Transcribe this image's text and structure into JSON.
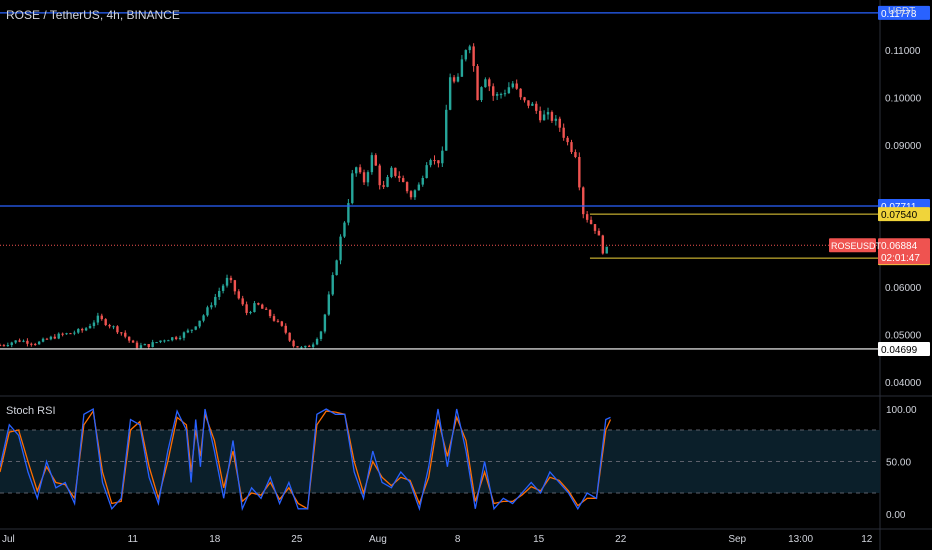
{
  "header": {
    "title": "ROSE / TetherUS, 4h, BINANCE",
    "currency": "USDT"
  },
  "indicator": {
    "title": "Stoch RSI"
  },
  "colors": {
    "up": "#26a69a",
    "down": "#ef5350",
    "blue_line": "#2962ff",
    "yellow": "#f0d43a",
    "rsi_k": "#2962ff",
    "rsi_d": "#ff6d00",
    "band_fill": "#0b1f2a"
  },
  "price_axis": {
    "ticks": [
      "0.11000",
      "0.10000",
      "0.09000",
      "0.06000",
      "0.05000",
      "0.04000"
    ],
    "tick_values": [
      0.11,
      0.1,
      0.09,
      0.06,
      0.05,
      0.04
    ]
  },
  "labels": {
    "top_line": "0.11778",
    "resistance": "0.07711",
    "yellow_high": "0.07540",
    "symbol": "ROSEUSDT",
    "last_price": "0.06884",
    "countdown": "02:01:47",
    "yellow_low": "0.06613",
    "support": "0.04699"
  },
  "rsi_axis": {
    "ticks": [
      "100.00",
      "50.00",
      "0.00"
    ],
    "tick_values": [
      100,
      50,
      0
    ]
  },
  "time_axis": {
    "ticks": [
      "Jul",
      "11",
      "18",
      "25",
      "Aug",
      "8",
      "15",
      "22",
      "Sep",
      "13:00",
      "12"
    ],
    "tick_positions": [
      0.0,
      0.1425,
      0.2305,
      0.3185,
      0.4055,
      0.491,
      0.578,
      0.666,
      0.791,
      0.859,
      0.93
    ]
  },
  "chart_data": {
    "type": "candlestick",
    "symbol": "ROSEUSDT",
    "interval": "4h",
    "exchange": "BINANCE",
    "ylim": [
      0.0375,
      0.1205
    ],
    "horizontal_levels": [
      {
        "value": 0.11778,
        "color": "#2962ff"
      },
      {
        "value": 0.07711,
        "color": "#2962ff"
      },
      {
        "value": 0.0754,
        "color": "#f0d43a"
      },
      {
        "value": 0.06613,
        "color": "#f0d43a"
      },
      {
        "value": 0.04699,
        "color": "#ffffff"
      }
    ],
    "last_price": 0.06884,
    "close_path": [
      [
        0,
        0.0478
      ],
      [
        0.02,
        0.0488
      ],
      [
        0.04,
        0.0482
      ],
      [
        0.06,
        0.0497
      ],
      [
        0.075,
        0.0503
      ],
      [
        0.09,
        0.051
      ],
      [
        0.105,
        0.0535
      ],
      [
        0.118,
        0.052
      ],
      [
        0.13,
        0.0505
      ],
      [
        0.145,
        0.0475
      ],
      [
        0.16,
        0.0478
      ],
      [
        0.175,
        0.049
      ],
      [
        0.19,
        0.0495
      ],
      [
        0.205,
        0.051
      ],
      [
        0.22,
        0.0545
      ],
      [
        0.235,
        0.0592
      ],
      [
        0.245,
        0.062
      ],
      [
        0.255,
        0.058
      ],
      [
        0.265,
        0.0545
      ],
      [
        0.275,
        0.0565
      ],
      [
        0.29,
        0.054
      ],
      [
        0.305,
        0.051
      ],
      [
        0.315,
        0.0478
      ],
      [
        0.325,
        0.047
      ],
      [
        0.335,
        0.048
      ],
      [
        0.345,
        0.051
      ],
      [
        0.355,
        0.06
      ],
      [
        0.365,
        0.07
      ],
      [
        0.372,
        0.076
      ],
      [
        0.38,
        0.086
      ],
      [
        0.39,
        0.082
      ],
      [
        0.4,
        0.088
      ],
      [
        0.41,
        0.08
      ],
      [
        0.42,
        0.0845
      ],
      [
        0.43,
        0.083
      ],
      [
        0.44,
        0.079
      ],
      [
        0.45,
        0.0815
      ],
      [
        0.46,
        0.088
      ],
      [
        0.468,
        0.086
      ],
      [
        0.475,
        0.088
      ],
      [
        0.482,
        0.105
      ],
      [
        0.49,
        0.102
      ],
      [
        0.498,
        0.11
      ],
      [
        0.505,
        0.112
      ],
      [
        0.512,
        0.1
      ],
      [
        0.52,
        0.105
      ],
      [
        0.53,
        0.1
      ],
      [
        0.54,
        0.101
      ],
      [
        0.55,
        0.103
      ],
      [
        0.56,
        0.099
      ],
      [
        0.57,
        0.0985
      ],
      [
        0.58,
        0.096
      ],
      [
        0.59,
        0.096
      ],
      [
        0.6,
        0.094
      ],
      [
        0.61,
        0.09
      ],
      [
        0.618,
        0.088
      ],
      [
        0.625,
        0.076
      ],
      [
        0.632,
        0.074
      ],
      [
        0.64,
        0.072
      ],
      [
        0.648,
        0.067
      ],
      [
        0.655,
        0.069
      ]
    ],
    "stoch_rsi": {
      "ylim": [
        0,
        100
      ],
      "bands": [
        80,
        50,
        20
      ],
      "k": [
        [
          0,
          45
        ],
        [
          0.01,
          85
        ],
        [
          0.02,
          75
        ],
        [
          0.03,
          40
        ],
        [
          0.04,
          15
        ],
        [
          0.05,
          50
        ],
        [
          0.06,
          25
        ],
        [
          0.07,
          30
        ],
        [
          0.08,
          10
        ],
        [
          0.09,
          95
        ],
        [
          0.1,
          100
        ],
        [
          0.11,
          30
        ],
        [
          0.12,
          5
        ],
        [
          0.13,
          15
        ],
        [
          0.14,
          90
        ],
        [
          0.15,
          85
        ],
        [
          0.16,
          35
        ],
        [
          0.17,
          10
        ],
        [
          0.18,
          60
        ],
        [
          0.19,
          98
        ],
        [
          0.2,
          80
        ],
        [
          0.205,
          30
        ],
        [
          0.21,
          90
        ],
        [
          0.215,
          45
        ],
        [
          0.22,
          100
        ],
        [
          0.23,
          60
        ],
        [
          0.24,
          15
        ],
        [
          0.25,
          70
        ],
        [
          0.26,
          5
        ],
        [
          0.27,
          25
        ],
        [
          0.28,
          15
        ],
        [
          0.29,
          35
        ],
        [
          0.3,
          10
        ],
        [
          0.31,
          30
        ],
        [
          0.32,
          5
        ],
        [
          0.33,
          5
        ],
        [
          0.34,
          95
        ],
        [
          0.35,
          100
        ],
        [
          0.36,
          95
        ],
        [
          0.37,
          95
        ],
        [
          0.38,
          40
        ],
        [
          0.39,
          15
        ],
        [
          0.4,
          60
        ],
        [
          0.41,
          30
        ],
        [
          0.42,
          25
        ],
        [
          0.43,
          40
        ],
        [
          0.44,
          30
        ],
        [
          0.45,
          5
        ],
        [
          0.46,
          45
        ],
        [
          0.47,
          100
        ],
        [
          0.48,
          45
        ],
        [
          0.49,
          100
        ],
        [
          0.5,
          60
        ],
        [
          0.51,
          5
        ],
        [
          0.52,
          50
        ],
        [
          0.53,
          5
        ],
        [
          0.54,
          15
        ],
        [
          0.55,
          10
        ],
        [
          0.56,
          20
        ],
        [
          0.57,
          30
        ],
        [
          0.58,
          20
        ],
        [
          0.59,
          40
        ],
        [
          0.6,
          30
        ],
        [
          0.61,
          20
        ],
        [
          0.62,
          5
        ],
        [
          0.63,
          20
        ],
        [
          0.64,
          15
        ],
        [
          0.65,
          90
        ],
        [
          0.655,
          92
        ]
      ],
      "d": [
        [
          0,
          40
        ],
        [
          0.01,
          78
        ],
        [
          0.02,
          80
        ],
        [
          0.03,
          50
        ],
        [
          0.04,
          22
        ],
        [
          0.05,
          45
        ],
        [
          0.06,
          30
        ],
        [
          0.07,
          28
        ],
        [
          0.08,
          15
        ],
        [
          0.09,
          85
        ],
        [
          0.1,
          98
        ],
        [
          0.11,
          40
        ],
        [
          0.12,
          10
        ],
        [
          0.13,
          12
        ],
        [
          0.14,
          80
        ],
        [
          0.15,
          88
        ],
        [
          0.16,
          45
        ],
        [
          0.17,
          15
        ],
        [
          0.18,
          50
        ],
        [
          0.19,
          92
        ],
        [
          0.2,
          85
        ],
        [
          0.205,
          40
        ],
        [
          0.21,
          80
        ],
        [
          0.215,
          55
        ],
        [
          0.22,
          95
        ],
        [
          0.23,
          70
        ],
        [
          0.24,
          25
        ],
        [
          0.25,
          60
        ],
        [
          0.26,
          12
        ],
        [
          0.27,
          20
        ],
        [
          0.28,
          18
        ],
        [
          0.29,
          30
        ],
        [
          0.3,
          14
        ],
        [
          0.31,
          25
        ],
        [
          0.32,
          10
        ],
        [
          0.33,
          5
        ],
        [
          0.34,
          85
        ],
        [
          0.35,
          98
        ],
        [
          0.36,
          97
        ],
        [
          0.37,
          95
        ],
        [
          0.38,
          50
        ],
        [
          0.39,
          20
        ],
        [
          0.4,
          50
        ],
        [
          0.41,
          35
        ],
        [
          0.42,
          27
        ],
        [
          0.43,
          35
        ],
        [
          0.44,
          32
        ],
        [
          0.45,
          10
        ],
        [
          0.46,
          35
        ],
        [
          0.47,
          90
        ],
        [
          0.48,
          55
        ],
        [
          0.49,
          92
        ],
        [
          0.5,
          70
        ],
        [
          0.51,
          12
        ],
        [
          0.52,
          40
        ],
        [
          0.53,
          10
        ],
        [
          0.54,
          12
        ],
        [
          0.55,
          12
        ],
        [
          0.56,
          18
        ],
        [
          0.57,
          26
        ],
        [
          0.58,
          22
        ],
        [
          0.59,
          35
        ],
        [
          0.6,
          32
        ],
        [
          0.61,
          22
        ],
        [
          0.62,
          8
        ],
        [
          0.63,
          15
        ],
        [
          0.64,
          15
        ],
        [
          0.65,
          80
        ],
        [
          0.655,
          90
        ]
      ]
    }
  }
}
